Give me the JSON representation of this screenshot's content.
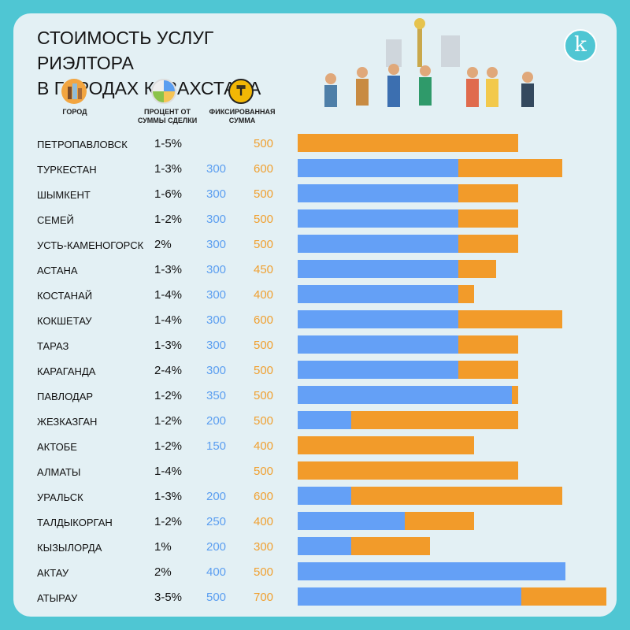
{
  "title_line1": "СТОИМОСТЬ УСЛУГ РИЭЛТОРА",
  "title_line2": "В ГОРОДАХ КАЗАХСТАНА",
  "logo_letter": "k",
  "legend": {
    "city": "ГОРОД",
    "percent": "ПРОЦЕНТ ОТ СУММЫ СДЕЛКИ",
    "fixed": "ФИКСИРОВАННАЯ СУММА"
  },
  "colors": {
    "background": "#4fc6d3",
    "panel": "#e3f0f4",
    "blue": "#64a0f6",
    "orange": "#f29b2a"
  },
  "chart_data": {
    "type": "bar",
    "orientation": "horizontal",
    "categories": [
      "ПЕТРОПАВЛОВСК",
      "ТУРКЕСТАН",
      "ШЫМКЕНТ",
      "СЕМЕЙ",
      "УСТЬ-КАМЕНОГОРСК",
      "АСТАНА",
      "КОСТАНАЙ",
      "КОКШЕТАУ",
      "ТАРАЗ",
      "КАРАГАНДА",
      "ПАВЛОДАР",
      "ЖЕЗКАЗГАН",
      "АКТОБЕ",
      "АЛМАТЫ",
      "УРАЛЬСК",
      "ТАЛДЫКОРГАН",
      "КЫЗЫЛОРДА",
      "АКТАУ",
      "АТЫРАУ"
    ],
    "percent": [
      "1-5%",
      "1-3%",
      "1-6%",
      "1-2%",
      "2%",
      "1-3%",
      "1-4%",
      "1-4%",
      "1-3%",
      "2-4%",
      "1-2%",
      "1-2%",
      "1-2%",
      "1-4%",
      "1-3%",
      "1-2%",
      "1%",
      "2%",
      "3-5%"
    ],
    "series": [
      {
        "color": "#64a0f6",
        "values": [
          null,
          300,
          300,
          300,
          300,
          300,
          300,
          300,
          300,
          300,
          350,
          200,
          150,
          null,
          200,
          250,
          200,
          400,
          500
        ]
      },
      {
        "color": "#f29b2a",
        "values": [
          500,
          600,
          500,
          500,
          500,
          450,
          400,
          600,
          500,
          500,
          500,
          500,
          400,
          500,
          600,
          400,
          300,
          500,
          700
        ]
      }
    ]
  }
}
